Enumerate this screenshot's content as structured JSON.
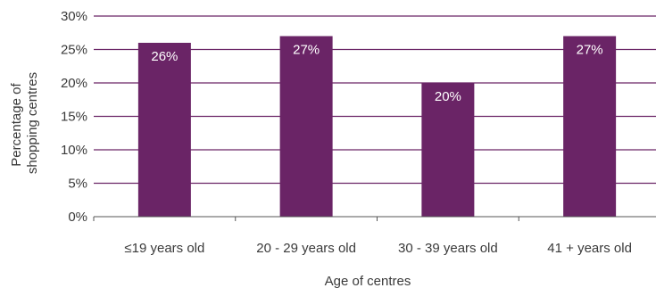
{
  "chart_data": {
    "type": "bar",
    "categories": [
      "≤19 years old",
      "20 - 29 years old",
      "30 - 39 years old",
      "41 + years old"
    ],
    "values": [
      26,
      27,
      20,
      27
    ],
    "data_labels": [
      "26%",
      "27%",
      "20%",
      "27%"
    ],
    "ylim": [
      0,
      30
    ],
    "y_ticks": [
      0,
      5,
      10,
      15,
      20,
      25,
      30
    ],
    "y_tick_labels": [
      "0%",
      "5%",
      "10%",
      "15%",
      "20%",
      "25%",
      "30%"
    ],
    "xlabel": "Age of centres",
    "ylabel_lines": [
      "Percentage of",
      "shopping centres"
    ],
    "grid": true,
    "legend": "none",
    "colors": {
      "bar": "#6a2466",
      "grid": "#6a2466",
      "axis": "#555555",
      "text": "#3a3a3a",
      "data_label": "#ffffff"
    }
  }
}
